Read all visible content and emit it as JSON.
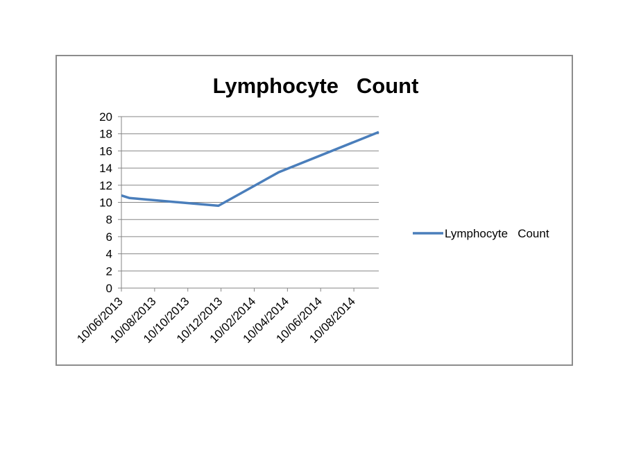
{
  "chart_data": {
    "type": "line",
    "title": "Lymphocyte   Count",
    "xlabel": "",
    "ylabel": "",
    "x_ticks": [
      "10/06/2013",
      "10/08/2013",
      "10/10/2013",
      "10/12/2013",
      "10/02/2014",
      "10/04/2014",
      "10/06/2014",
      "10/08/2014"
    ],
    "ylim": [
      0,
      20
    ],
    "y_ticks": [
      0,
      2,
      4,
      6,
      8,
      10,
      12,
      14,
      16,
      18,
      20
    ],
    "grid": "horizontal",
    "legend_position": "right",
    "series": [
      {
        "name": "Lymphocyte   Count",
        "color": "#4a7ebb",
        "points": [
          {
            "x": "2013-06-10",
            "y": 10.8
          },
          {
            "x": "2013-06-25",
            "y": 10.5
          },
          {
            "x": "2013-12-05",
            "y": 9.6
          },
          {
            "x": "2014-03-25",
            "y": 13.5
          },
          {
            "x": "2014-09-25",
            "y": 18.2
          }
        ]
      }
    ]
  }
}
